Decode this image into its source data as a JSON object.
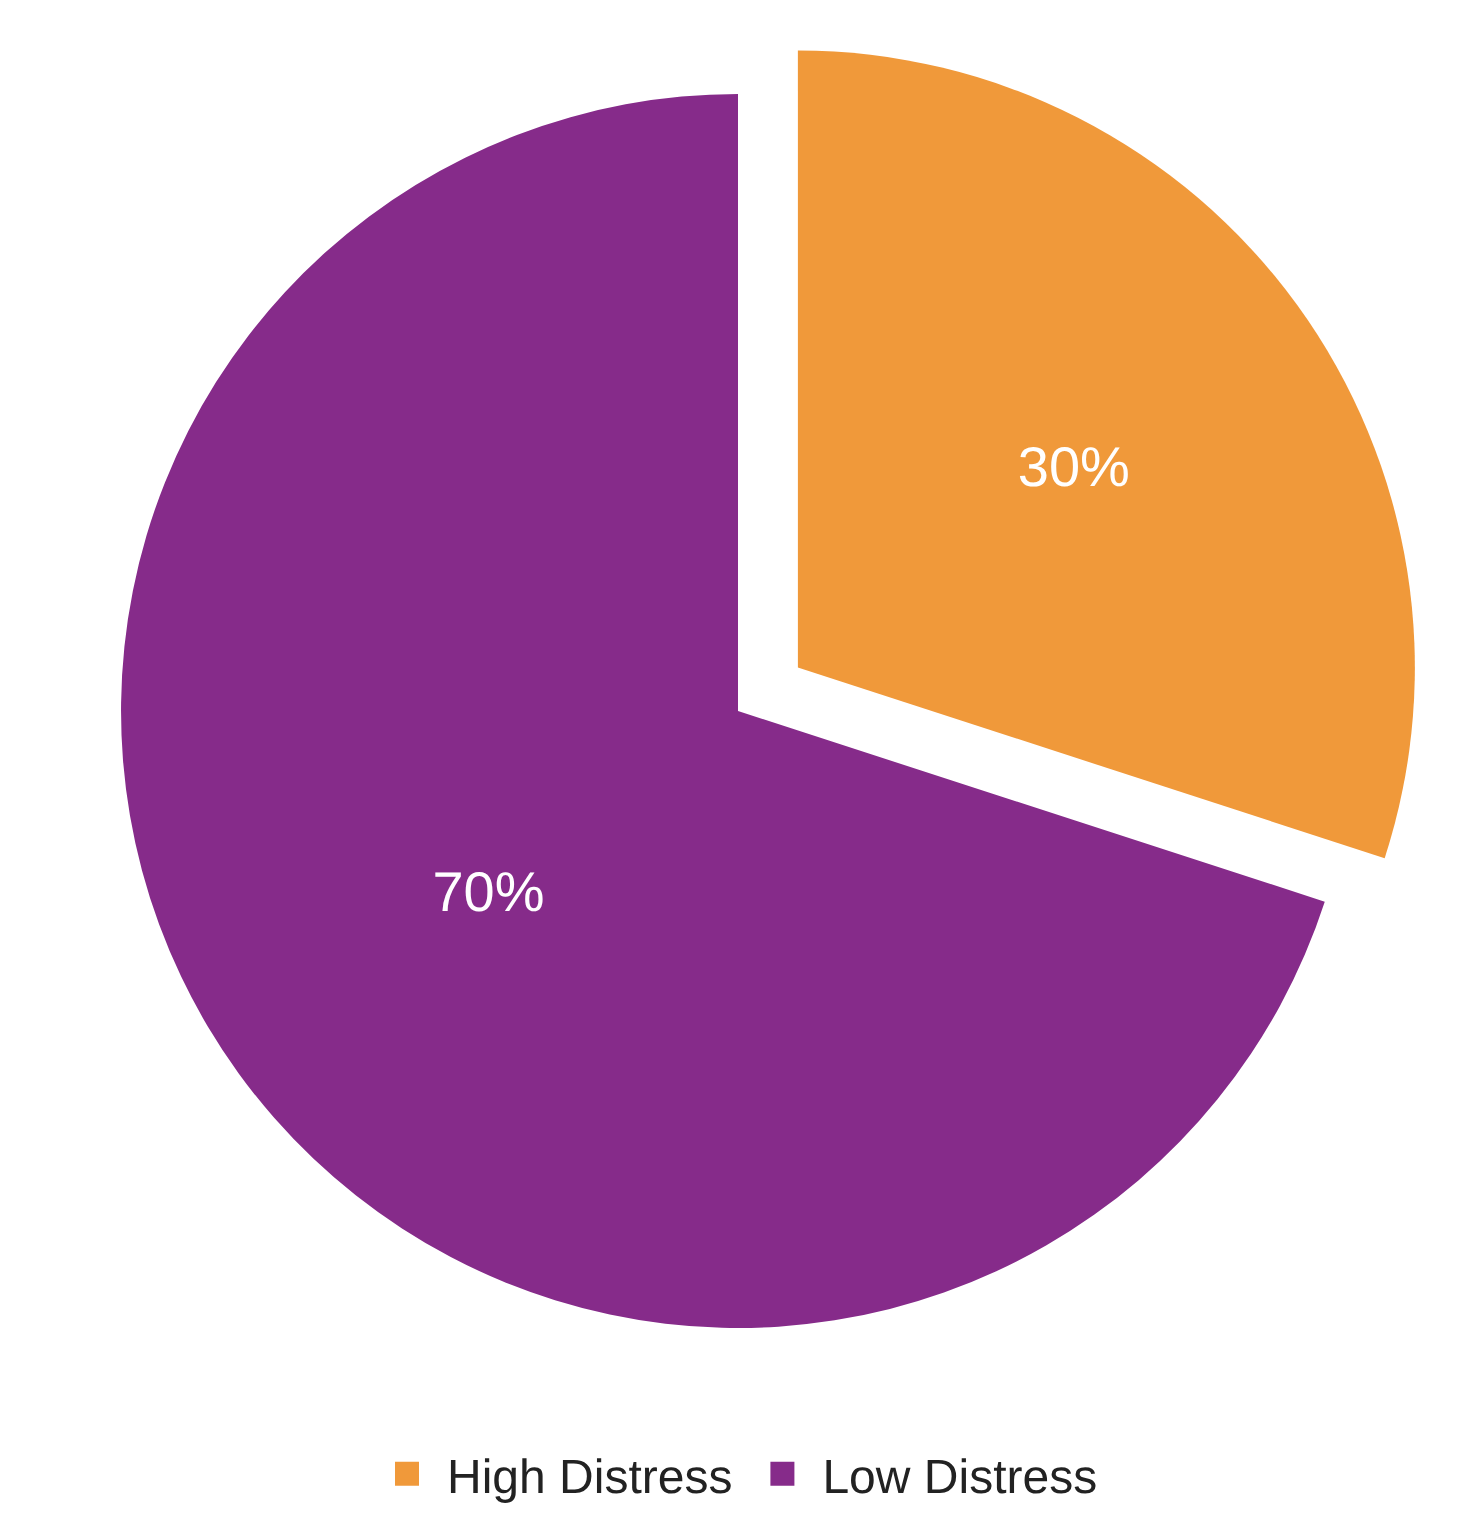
{
  "chart_data": {
    "type": "pie",
    "categories": [
      "High Distress",
      "Low Distress"
    ],
    "values": [
      30,
      70
    ],
    "colors": [
      "#f0993a",
      "#862b8a"
    ],
    "value_labels": [
      "30%",
      "70%"
    ],
    "legend": "bottom"
  }
}
